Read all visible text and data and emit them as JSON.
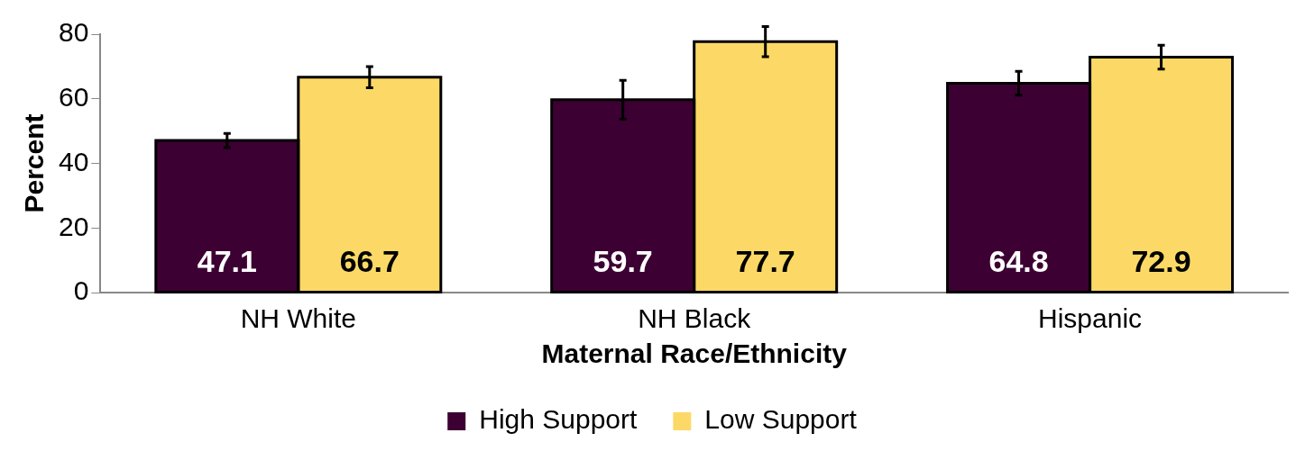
{
  "chart_data": {
    "type": "bar",
    "xlabel": "Maternal Race/Ethnicity",
    "ylabel": "Percent",
    "categories": [
      "NH White",
      "NH Black",
      "Hispanic"
    ],
    "series": [
      {
        "name": "High Support",
        "color": "#3d0033",
        "values": [
          47.1,
          59.7,
          64.8
        ],
        "errors": [
          2.2,
          6,
          3.7
        ]
      },
      {
        "name": "Low Support",
        "color": "#fcd966",
        "values": [
          66.7,
          77.7,
          72.9
        ],
        "errors": [
          3.3,
          4.7,
          3.7
        ]
      }
    ],
    "ylim": [
      0,
      80
    ],
    "yticks": [
      0,
      20,
      40,
      60,
      80
    ],
    "data_labels": true,
    "legend": "bottom",
    "grid": false
  }
}
